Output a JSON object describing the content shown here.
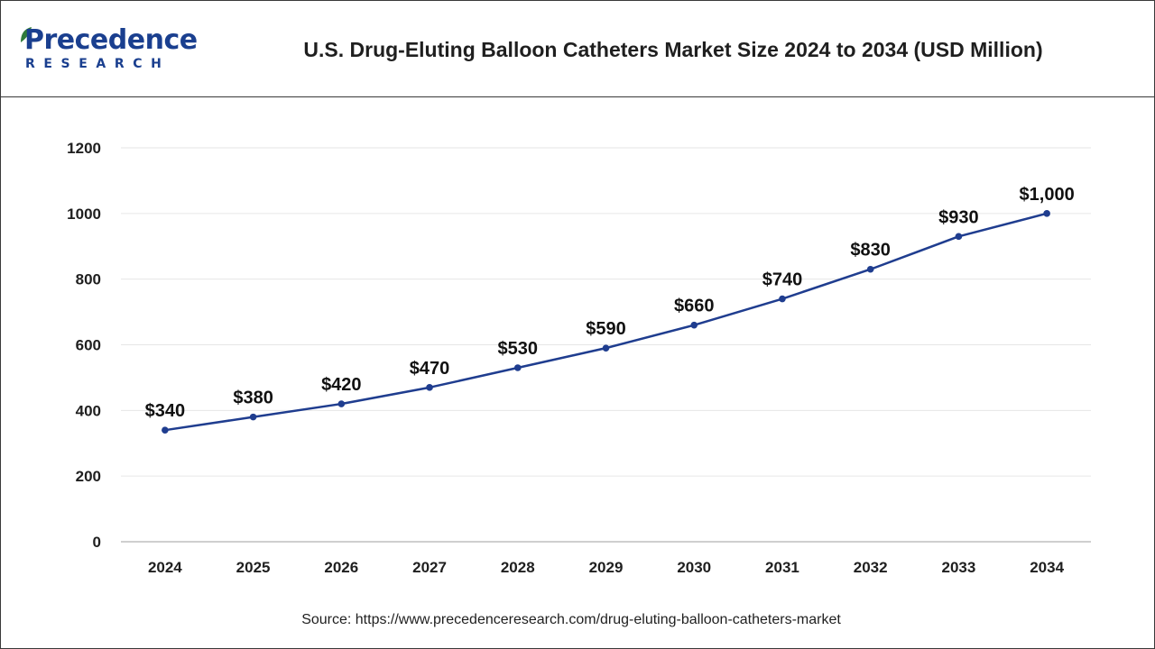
{
  "header": {
    "logo_name": "Precedence",
    "logo_tagline": "RESEARCH",
    "title": "U.S. Drug-Eluting Balloon Catheters Market Size 2024 to 2034 (USD Million)"
  },
  "chart_data": {
    "type": "line",
    "title": "U.S. Drug-Eluting Balloon Catheters Market Size 2024 to 2034 (USD Million)",
    "xlabel": "",
    "ylabel": "",
    "categories": [
      "2024",
      "2025",
      "2026",
      "2027",
      "2028",
      "2029",
      "2030",
      "2031",
      "2032",
      "2033",
      "2034"
    ],
    "values": [
      340,
      380,
      420,
      470,
      530,
      590,
      660,
      740,
      830,
      930,
      1000
    ],
    "data_labels": [
      "$340",
      "$380",
      "$420",
      "$470",
      "$530",
      "$590",
      "$660",
      "$740",
      "$830",
      "$930",
      "$1,000"
    ],
    "ylim": [
      0,
      1200
    ],
    "yticks": [
      0,
      200,
      400,
      600,
      800,
      1000,
      1200
    ],
    "grid": true,
    "legend": "none"
  },
  "colors": {
    "series": "#1f3d8f",
    "grid": "#e6e6e6",
    "axis": "#bfbfbf",
    "text": "#1f1f1f",
    "brand": "#1a3f8f"
  },
  "footer": {
    "source": "Source: https://www.precedenceresearch.com/drug-eluting-balloon-catheters-market"
  }
}
